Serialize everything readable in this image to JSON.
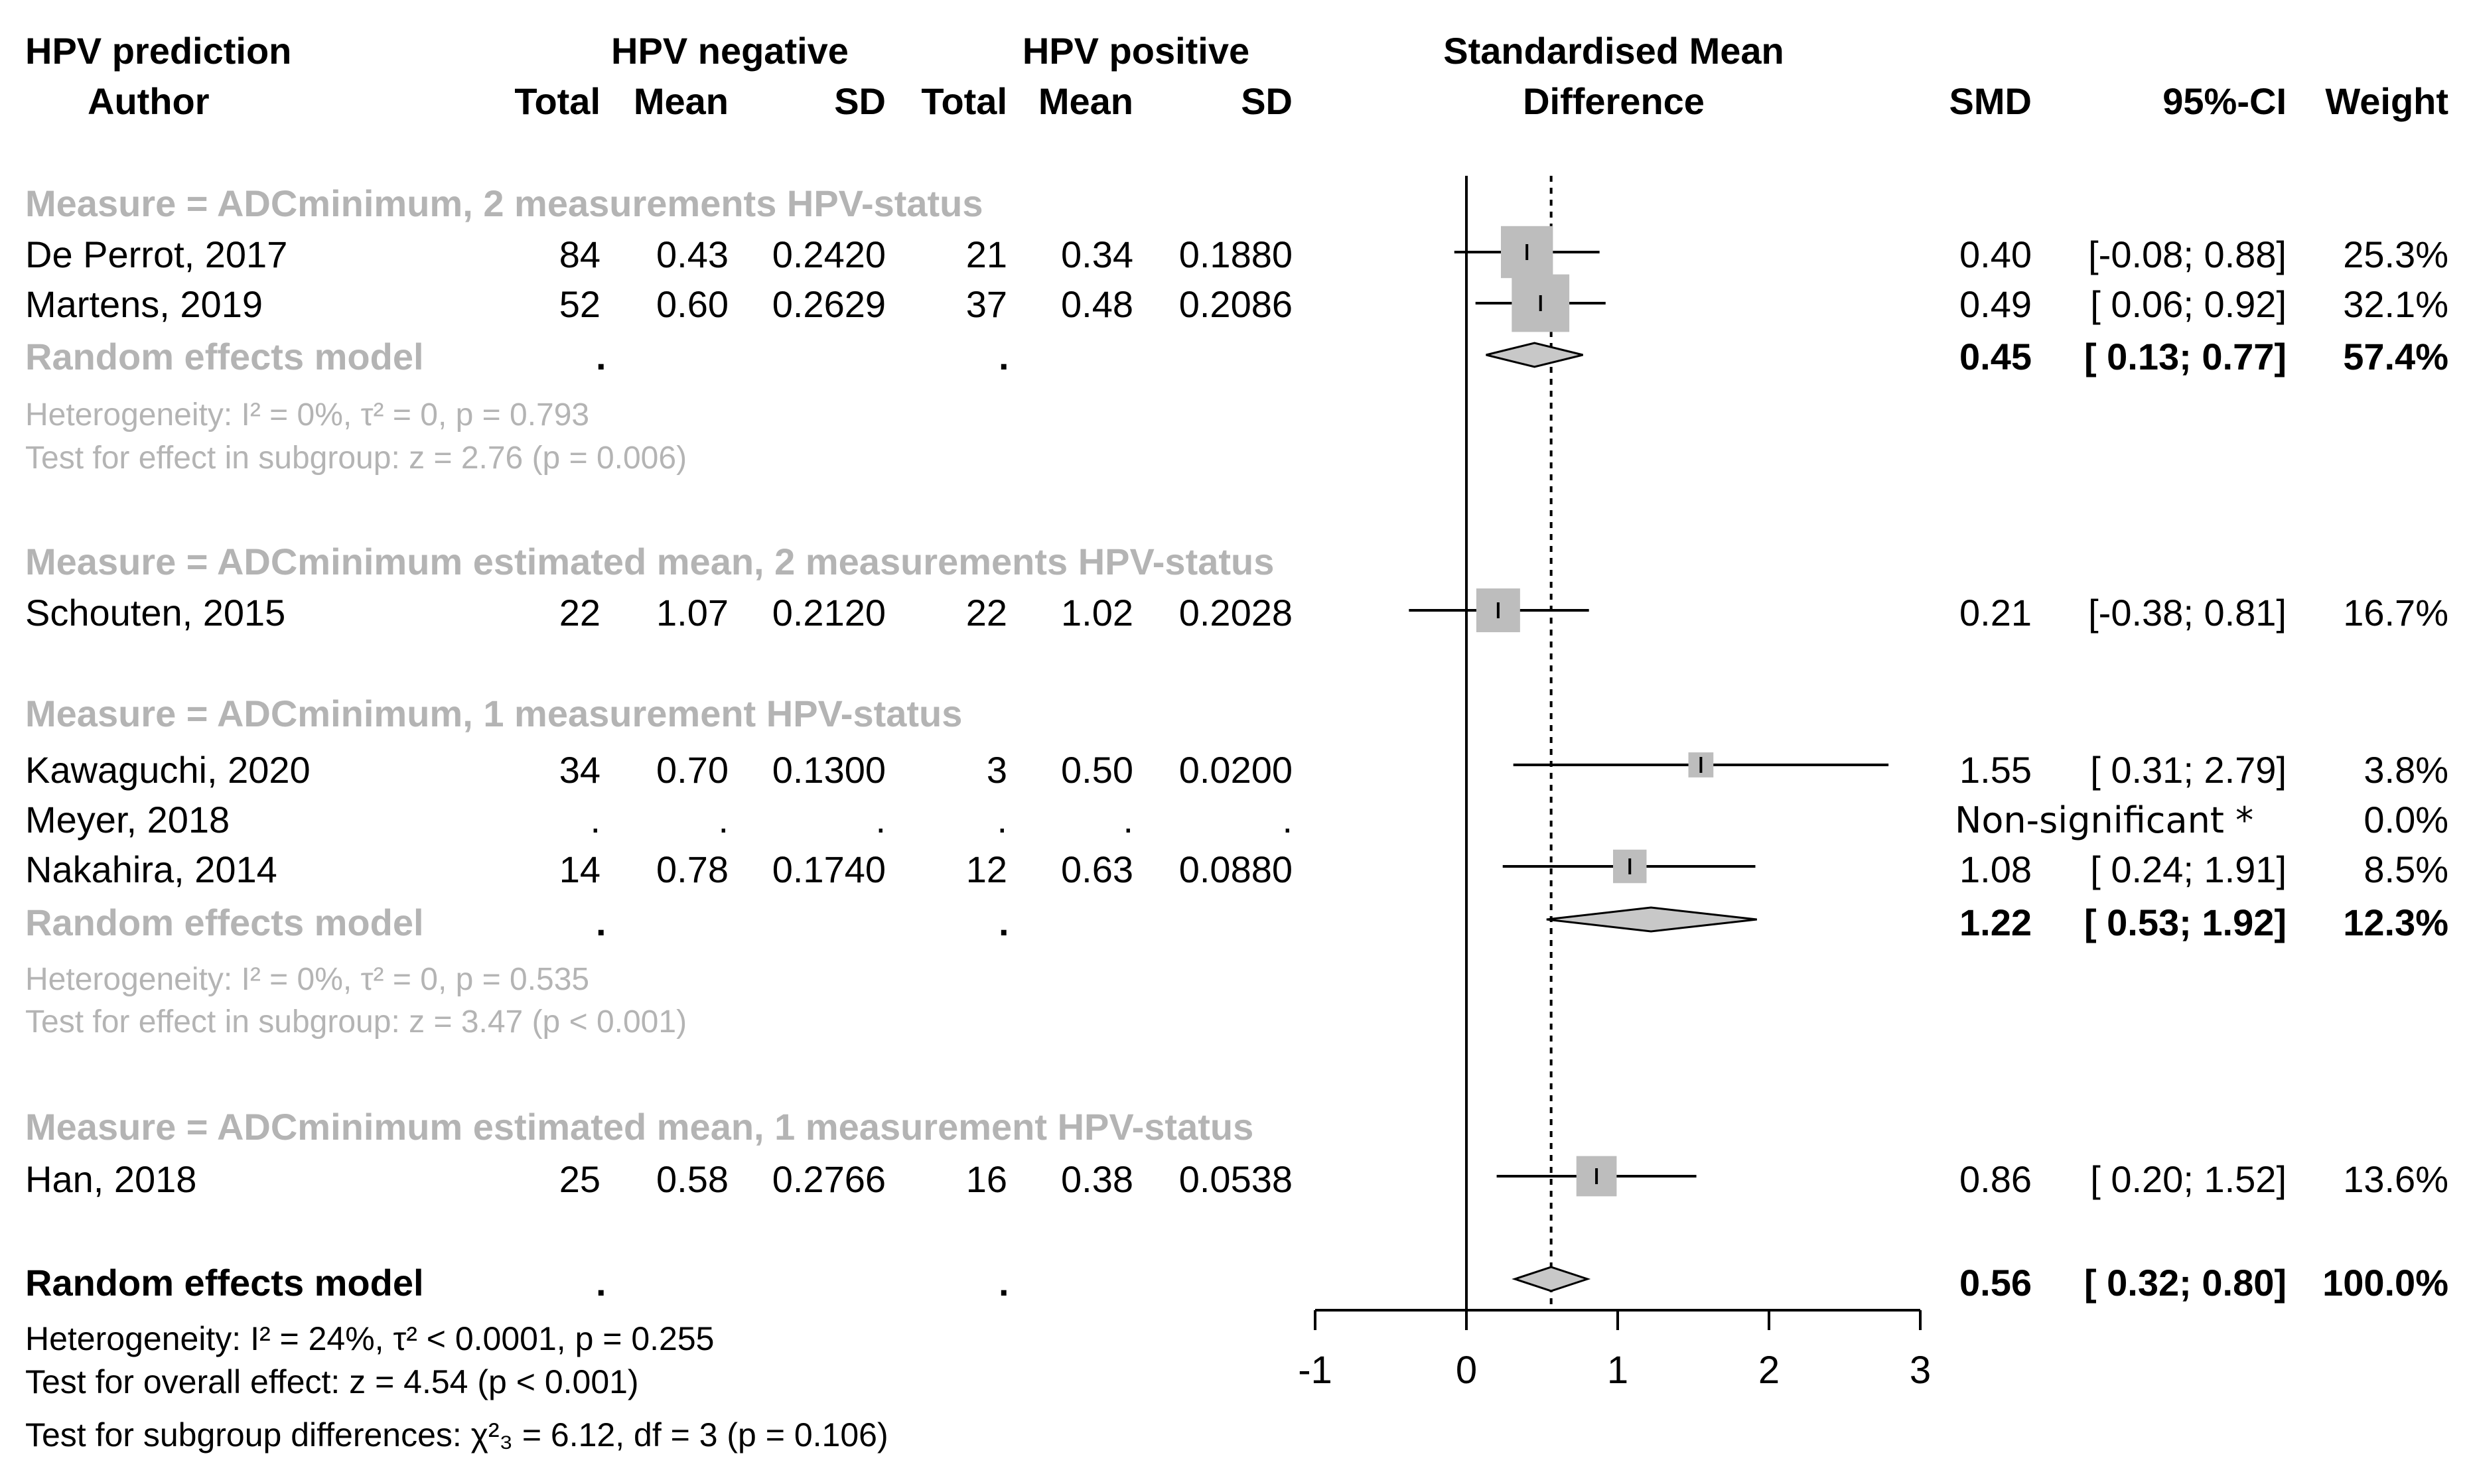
{
  "header": {
    "col_group": "HPV prediction",
    "col_author": "Author",
    "neg_group": "HPV negative",
    "pos_group": "HPV positive",
    "total": "Total",
    "mean": "Mean",
    "sd": "SD",
    "plot_line1": "Standardised Mean",
    "plot_line2": "Difference",
    "smd": "SMD",
    "ci": "95%-CI",
    "weight": "Weight"
  },
  "chart_data": {
    "type": "forest",
    "xlabel": "Standardised Mean Difference",
    "xlim": [
      -1,
      3
    ],
    "xticks": [
      -1,
      0,
      1,
      2,
      3
    ],
    "null_line": 0,
    "overall_line": 0.56,
    "subgroups": [
      {
        "label": "Measure = ADCminimum, 2 measurements HPV-status",
        "studies": [
          {
            "author": "De Perrot, 2017",
            "n_neg": "84",
            "mean_neg": "0.43",
            "sd_neg": "0.2420",
            "n_pos": "21",
            "mean_pos": "0.34",
            "sd_pos": "0.1880",
            "smd_text": "0.40",
            "ci_text": "[-0.08; 0.88]",
            "weight_text": "25.3%",
            "smd": 0.4,
            "lower": -0.08,
            "upper": 0.88,
            "weight": 25.3
          },
          {
            "author": "Martens, 2019",
            "n_neg": "52",
            "mean_neg": "0.60",
            "sd_neg": "0.2629",
            "n_pos": "37",
            "mean_pos": "0.48",
            "sd_pos": "0.2086",
            "smd_text": "0.49",
            "ci_text": "[ 0.06; 0.92]",
            "weight_text": "32.1%",
            "smd": 0.49,
            "lower": 0.06,
            "upper": 0.92,
            "weight": 32.1
          }
        ],
        "pooled": {
          "label": "Random effects model",
          "dot1": ".",
          "dot2": ".",
          "smd_text": "0.45",
          "ci_text": "[ 0.13; 0.77]",
          "weight_text": "57.4%",
          "smd": 0.45,
          "lower": 0.13,
          "upper": 0.77
        },
        "heterogeneity": "Heterogeneity: I² = 0%, τ² = 0, p = 0.793",
        "test": "Test for effect in subgroup: z = 2.76 (p = 0.006)"
      },
      {
        "label": "Measure = ADCminimum estimated mean, 2 measurements HPV-status",
        "studies": [
          {
            "author": "Schouten, 2015",
            "n_neg": "22",
            "mean_neg": "1.07",
            "sd_neg": "0.2120",
            "n_pos": "22",
            "mean_pos": "1.02",
            "sd_pos": "0.2028",
            "smd_text": "0.21",
            "ci_text": "[-0.38; 0.81]",
            "weight_text": "16.7%",
            "smd": 0.21,
            "lower": -0.38,
            "upper": 0.81,
            "weight": 16.7
          }
        ]
      },
      {
        "label": "Measure = ADCminimum, 1 measurement HPV-status",
        "studies": [
          {
            "author": "Kawaguchi, 2020",
            "n_neg": "34",
            "mean_neg": "0.70",
            "sd_neg": "0.1300",
            "n_pos": "3",
            "mean_pos": "0.50",
            "sd_pos": "0.0200",
            "smd_text": "1.55",
            "ci_text": "[ 0.31; 2.79]",
            "weight_text": "3.8%",
            "smd": 1.55,
            "lower": 0.31,
            "upper": 2.79,
            "weight": 3.8
          },
          {
            "author": "Meyer, 2018",
            "n_neg": ".",
            "mean_neg": ".",
            "sd_neg": ".",
            "n_pos": ".",
            "mean_pos": ".",
            "sd_pos": ".",
            "note": "Non-significant *",
            "weight_text": "0.0%",
            "weight": 0.0
          },
          {
            "author": "Nakahira, 2014",
            "n_neg": "14",
            "mean_neg": "0.78",
            "sd_neg": "0.1740",
            "n_pos": "12",
            "mean_pos": "0.63",
            "sd_pos": "0.0880",
            "smd_text": "1.08",
            "ci_text": "[ 0.24; 1.91]",
            "weight_text": "8.5%",
            "smd": 1.08,
            "lower": 0.24,
            "upper": 1.91,
            "weight": 8.5
          }
        ],
        "pooled": {
          "label": "Random effects model",
          "dot1": ".",
          "dot2": ".",
          "smd_text": "1.22",
          "ci_text": "[ 0.53; 1.92]",
          "weight_text": "12.3%",
          "smd": 1.22,
          "lower": 0.53,
          "upper": 1.92
        },
        "heterogeneity": "Heterogeneity: I² = 0%, τ² = 0, p = 0.535",
        "test": "Test for effect in subgroup: z = 3.47 (p < 0.001)"
      },
      {
        "label": "Measure = ADCminimum estimated mean, 1 measurement HPV-status",
        "studies": [
          {
            "author": "Han, 2018",
            "n_neg": "25",
            "mean_neg": "0.58",
            "sd_neg": "0.2766",
            "n_pos": "16",
            "mean_pos": "0.38",
            "sd_pos": "0.0538",
            "smd_text": "0.86",
            "ci_text": "[ 0.20; 1.52]",
            "weight_text": "13.6%",
            "smd": 0.86,
            "lower": 0.2,
            "upper": 1.52,
            "weight": 13.6
          }
        ]
      }
    ],
    "overall": {
      "label": "Random effects model",
      "dot1": ".",
      "dot2": ".",
      "smd_text": "0.56",
      "ci_text": "[ 0.32; 0.80]",
      "weight_text": "100.0%",
      "smd": 0.56,
      "lower": 0.32,
      "upper": 0.8,
      "heterogeneity": "Heterogeneity: I² = 24%, τ² < 0.0001, p = 0.255",
      "test_overall": "Test for overall effect: z = 4.54 (p < 0.001)",
      "test_subgroup": "Test for subgroup differences: χ²₃ = 6.12, df = 3 (p = 0.106)"
    }
  }
}
